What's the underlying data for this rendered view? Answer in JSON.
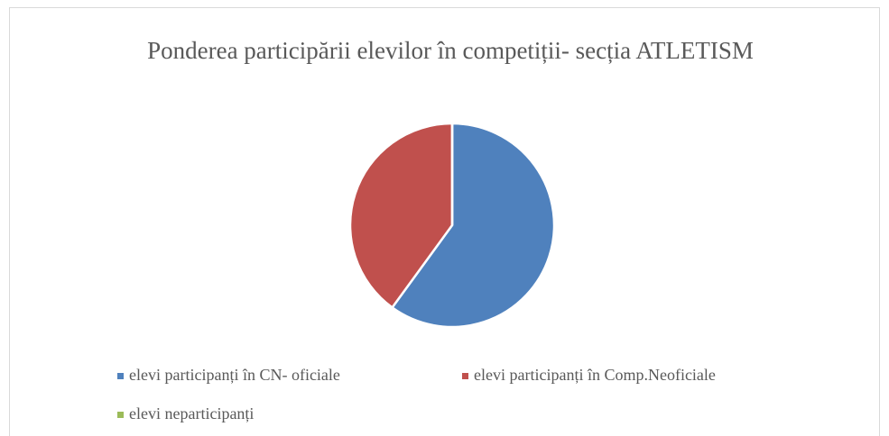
{
  "chart_data": {
    "type": "pie",
    "title": "Ponderea participării elevilor în competiții- secția ATLETISM",
    "categories": [
      "elevi participanți în CN- oficiale",
      "elevi participanți în Comp.Neoficiale",
      "elevi neparticipanți"
    ],
    "values": [
      60,
      40,
      0
    ],
    "colors": [
      "#4f81bd",
      "#c0504d",
      "#9bbb59"
    ],
    "legend": "bottom"
  }
}
